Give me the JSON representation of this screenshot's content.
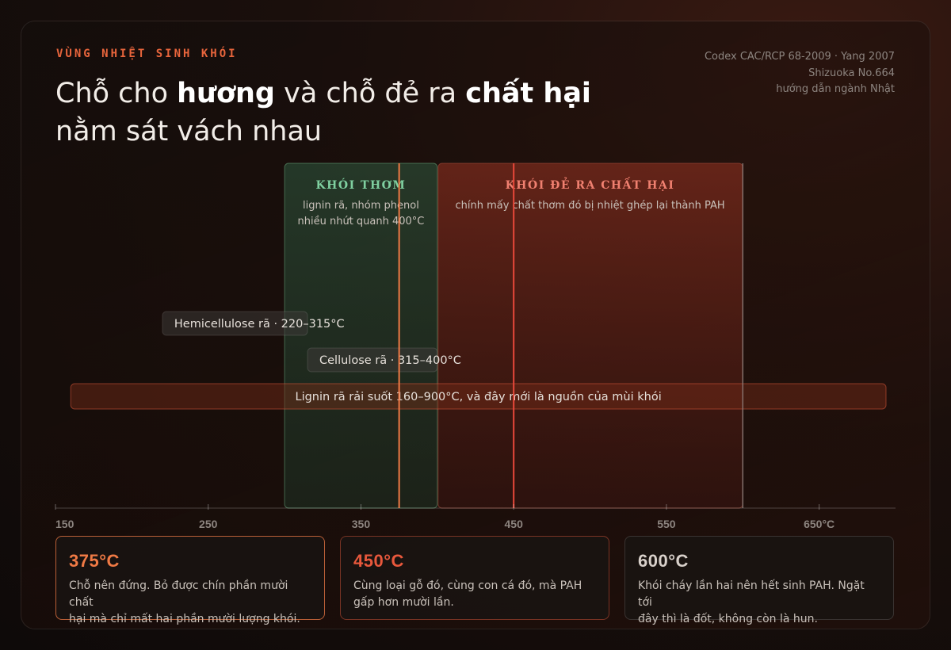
{
  "header": {
    "kicker": "VÙNG NHIỆT SINH KHÓI",
    "title_part1": "Chỗ cho ",
    "title_bold1": "hương",
    "title_part2": " và chỗ đẻ ra ",
    "title_bold2": "chất hại",
    "title_line2": "nằm sát vách nhau"
  },
  "source": {
    "line1": "Codex CAC/RCP 68-2009 · Yang 2007",
    "line2": "Shizuoka No.664",
    "line3": "hướng dẫn ngành Nhật"
  },
  "chart_data": {
    "type": "diagram",
    "axis": {
      "min": 150,
      "max": 700,
      "ticks": [
        150,
        250,
        350,
        450,
        550,
        650
      ],
      "tick_labels": [
        "150",
        "250",
        "350",
        "450",
        "550",
        "650°C"
      ]
    },
    "zones": [
      {
        "id": "aroma",
        "start": 300,
        "end": 400,
        "title": "KHÓI THƠM",
        "desc1": "lignin rã, nhóm phenol",
        "desc2": "nhiều nhứt quanh 400°C",
        "color": "#7fd0a0"
      },
      {
        "id": "harm",
        "start": 400,
        "end": 600,
        "title": "KHÓI ĐẺ RA CHẤT HẠI",
        "desc1": "chính mấy chất thơm đó bị nhiệt ghép lại thành PAH",
        "desc2": "",
        "color": "#f08070"
      }
    ],
    "bands": [
      {
        "label": "Hemicellulose rã · 220–315°C",
        "start": 220,
        "end": 315
      },
      {
        "label": "Cellulose rã · 315–400°C",
        "start": 315,
        "end": 400
      },
      {
        "label": "Lignin rã rải suốt 160–900°C, và đây mới là nguồn của mùi khói",
        "start": 160,
        "end": 900
      }
    ],
    "markers": [
      {
        "value": 375,
        "color": "#f07a45"
      },
      {
        "value": 450,
        "color": "#e8483a"
      },
      {
        "value": 600,
        "color": "#8a7c78"
      }
    ]
  },
  "cards": [
    {
      "temp": "375°C",
      "text1": "Chỗ nên đứng. Bỏ được chín phần mười chất",
      "text2": "hại mà chỉ mất hai phần mười lượng khói.",
      "color": "#f07a45"
    },
    {
      "temp": "450°C",
      "text1": "Cùng loại gỗ đó, cùng con cá đó, mà PAH",
      "text2": "gấp hơn mười lần.",
      "color": "#e8583c"
    },
    {
      "temp": "600°C",
      "text1": "Khói cháy lần hai nên hết sinh PAH. Ngặt tới",
      "text2": "đây thì là đốt, không còn là hun.",
      "color": "#d8d0ca"
    }
  ]
}
